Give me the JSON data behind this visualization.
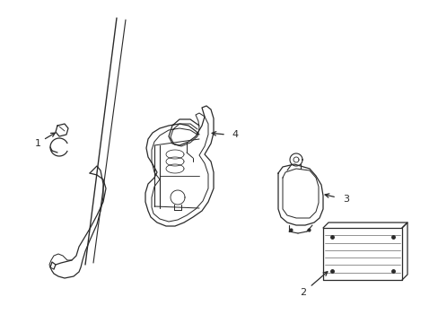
{
  "bg_color": "#ffffff",
  "line_color": "#2a2a2a",
  "lw": 0.9,
  "figsize": [
    4.89,
    3.6
  ],
  "dpi": 100,
  "xlim": [
    0,
    489
  ],
  "ylim": [
    0,
    360
  ]
}
